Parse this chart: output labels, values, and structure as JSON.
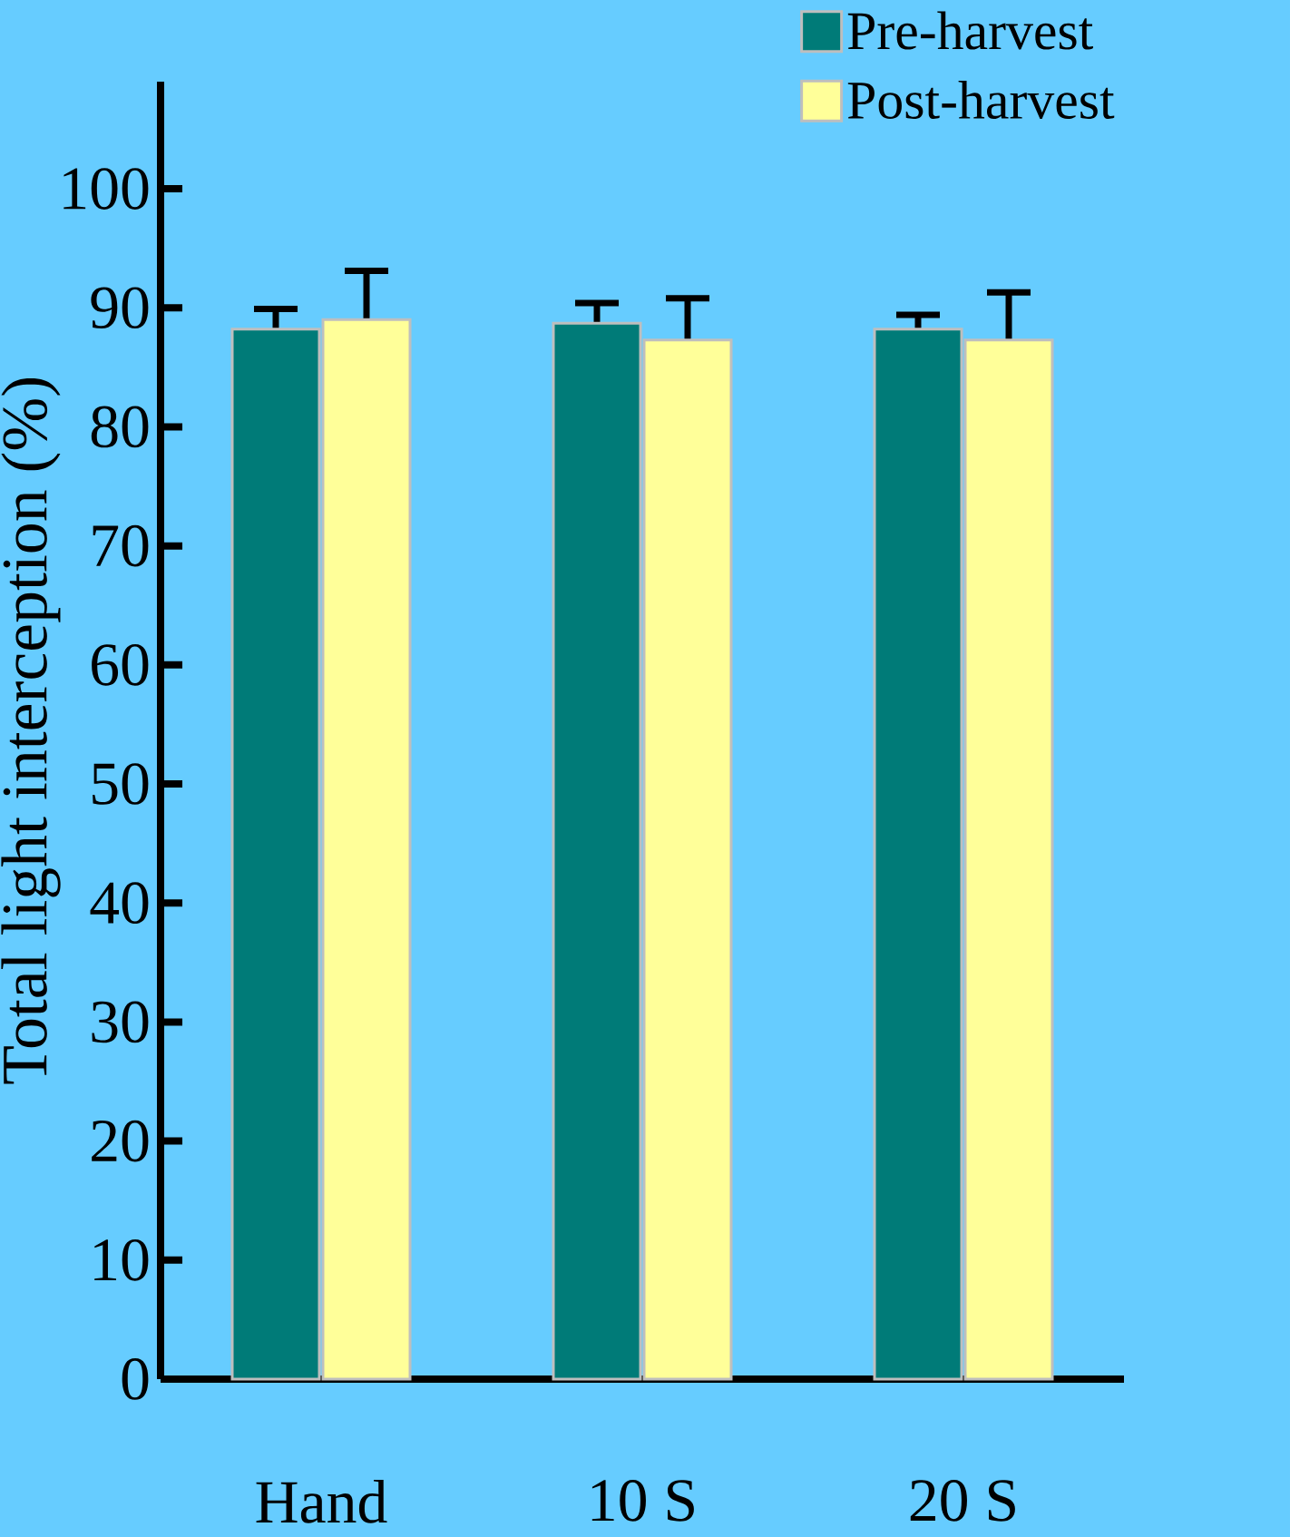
{
  "chart_data": {
    "type": "bar",
    "ylabel": "Total light interception (%)",
    "categories": [
      "Hand",
      "10 S",
      "20 S"
    ],
    "series": [
      {
        "name": "Pre-harvest",
        "color": "#007b78",
        "values": [
          88.2,
          88.7,
          88.2
        ],
        "errors": [
          1.7,
          1.7,
          1.2
        ]
      },
      {
        "name": "Post-harvest",
        "color": "#ffff99",
        "values": [
          89.0,
          87.3,
          87.3
        ],
        "errors": [
          4.1,
          3.5,
          4.0
        ]
      }
    ],
    "ylim": [
      0,
      109
    ],
    "yticks": [
      0,
      10,
      20,
      30,
      40,
      50,
      60,
      70,
      80,
      90,
      100
    ],
    "legend": "top right",
    "grid": false
  }
}
